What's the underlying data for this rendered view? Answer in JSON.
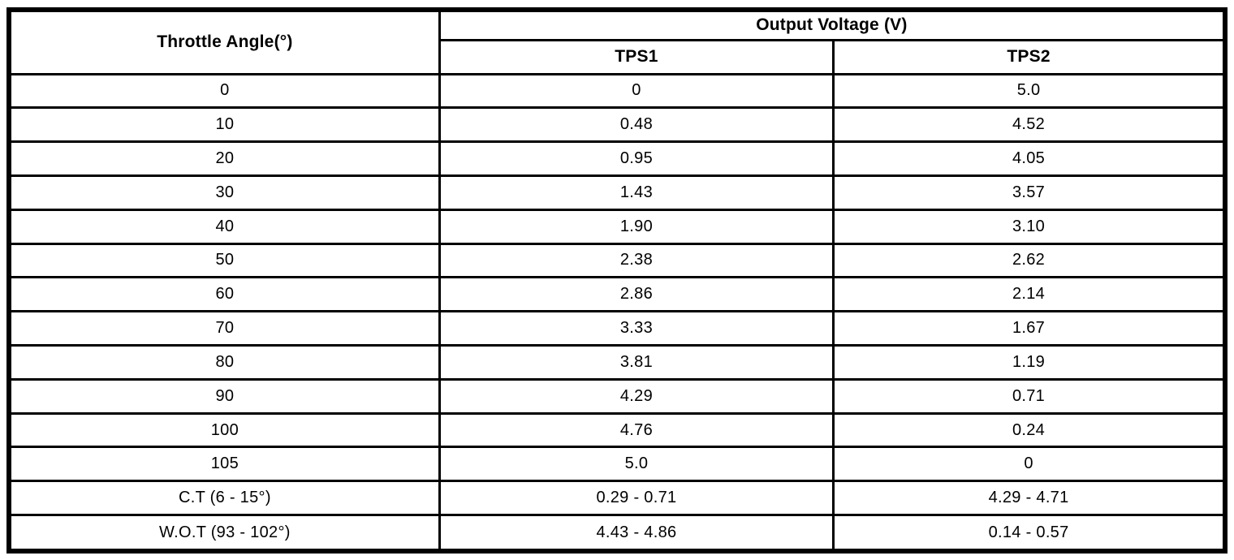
{
  "chart_data": {
    "type": "table",
    "columns": [
      "Throttle Angle(°)",
      "TPS1",
      "TPS2"
    ],
    "group_header": "Output Voltage (V)",
    "rows": [
      [
        "0",
        "0",
        "5.0"
      ],
      [
        "10",
        "0.48",
        "4.52"
      ],
      [
        "20",
        "0.95",
        "4.05"
      ],
      [
        "30",
        "1.43",
        "3.57"
      ],
      [
        "40",
        "1.90",
        "3.10"
      ],
      [
        "50",
        "2.38",
        "2.62"
      ],
      [
        "60",
        "2.86",
        "2.14"
      ],
      [
        "70",
        "3.33",
        "1.67"
      ],
      [
        "80",
        "3.81",
        "1.19"
      ],
      [
        "90",
        "4.29",
        "0.71"
      ],
      [
        "100",
        "4.76",
        "0.24"
      ],
      [
        "105",
        "5.0",
        "0"
      ],
      [
        "C.T (6 - 15°)",
        "0.29 - 0.71",
        "4.29 - 4.71"
      ],
      [
        "W.O.T (93 - 102°)",
        "4.43 - 4.86",
        "0.14 - 0.57"
      ]
    ]
  },
  "colors": {
    "border": "#000000",
    "background": "#ffffff",
    "text": "#000000"
  }
}
